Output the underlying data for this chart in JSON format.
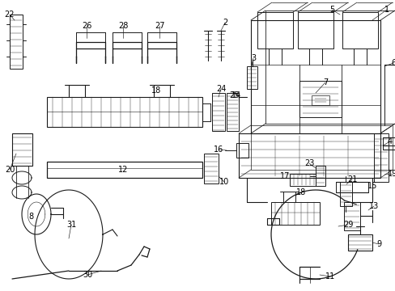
{
  "bg_color": "#ffffff",
  "line_color": "#1a1a1a",
  "text_color": "#000000",
  "font_size": 7,
  "fig_width": 4.89,
  "fig_height": 3.6,
  "dpi": 100
}
